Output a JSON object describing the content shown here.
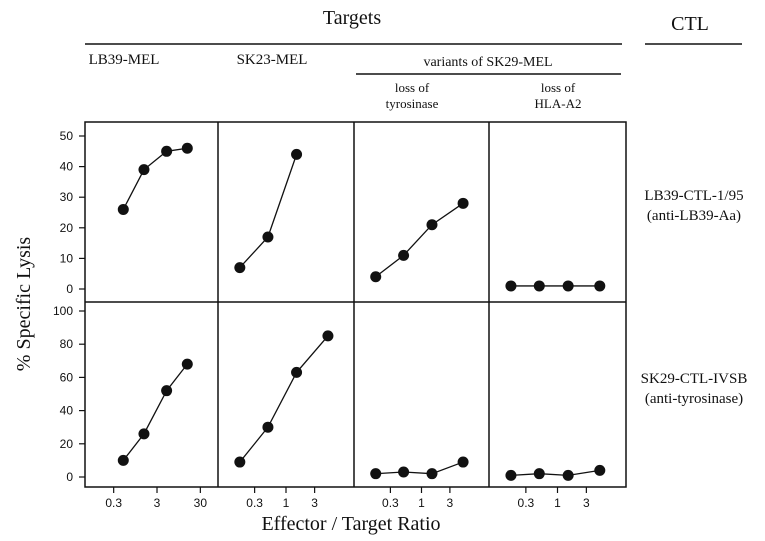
{
  "header": {
    "targets_label": "Targets",
    "ctl_label": "CTL",
    "variants_label": "variants of SK29-MEL"
  },
  "columns": [
    {
      "label": "LB39-MEL",
      "sub": [
        "",
        ""
      ]
    },
    {
      "label": "SK23-MEL",
      "sub": [
        "",
        ""
      ]
    },
    {
      "label": "",
      "sub": [
        "loss of",
        "tyrosinase"
      ]
    },
    {
      "label": "",
      "sub": [
        "loss of",
        "HLA-A2"
      ]
    }
  ],
  "rows": [
    {
      "ctl": [
        "LB39-CTL-1/95",
        "(anti-LB39-Aa)"
      ]
    },
    {
      "ctl": [
        "SK29-CTL-IVSB",
        "(anti-tyrosinase)"
      ]
    }
  ],
  "chart_data": {
    "type": "line",
    "title": "",
    "xlabel": "Effector / Target Ratio",
    "ylabel": "% Specific Lysis",
    "xscale": "log",
    "marker": "filled-circle",
    "x_ticks": [
      [
        "0.3",
        "3",
        "30"
      ],
      [
        "0.3",
        "1",
        "3"
      ],
      [
        "0.3",
        "1",
        "3"
      ],
      [
        "0.3",
        "1",
        "3"
      ]
    ],
    "y_ticks": [
      [
        "0",
        "10",
        "20",
        "30",
        "40",
        "50"
      ],
      [
        "0",
        "20",
        "40",
        "60",
        "80",
        "100"
      ]
    ],
    "panels": [
      {
        "row": 0,
        "col": 0,
        "ylim": [
          0,
          50
        ],
        "x": [
          0.5,
          1.5,
          5,
          15
        ],
        "y": [
          26,
          39,
          45,
          46
        ]
      },
      {
        "row": 0,
        "col": 1,
        "ylim": [
          0,
          50
        ],
        "x": [
          0.17,
          0.5,
          1.5
        ],
        "y": [
          7,
          17,
          44
        ]
      },
      {
        "row": 0,
        "col": 2,
        "ylim": [
          0,
          50
        ],
        "x": [
          0.17,
          0.5,
          1.5,
          5
        ],
        "y": [
          4,
          11,
          21,
          28
        ]
      },
      {
        "row": 0,
        "col": 3,
        "ylim": [
          0,
          50
        ],
        "x": [
          0.17,
          0.5,
          1.5,
          5
        ],
        "y": [
          1,
          1,
          1,
          1
        ]
      },
      {
        "row": 1,
        "col": 0,
        "ylim": [
          0,
          100
        ],
        "x": [
          0.5,
          1.5,
          5,
          15
        ],
        "y": [
          10,
          26,
          52,
          68
        ]
      },
      {
        "row": 1,
        "col": 1,
        "ylim": [
          0,
          100
        ],
        "x": [
          0.17,
          0.5,
          1.5,
          5
        ],
        "y": [
          9,
          30,
          63,
          85
        ]
      },
      {
        "row": 1,
        "col": 2,
        "ylim": [
          0,
          100
        ],
        "x": [
          0.17,
          0.5,
          1.5,
          5
        ],
        "y": [
          2,
          3,
          2,
          9
        ]
      },
      {
        "row": 1,
        "col": 3,
        "ylim": [
          0,
          100
        ],
        "x": [
          0.17,
          0.5,
          1.5,
          5
        ],
        "y": [
          1,
          2,
          1,
          4
        ]
      }
    ]
  }
}
